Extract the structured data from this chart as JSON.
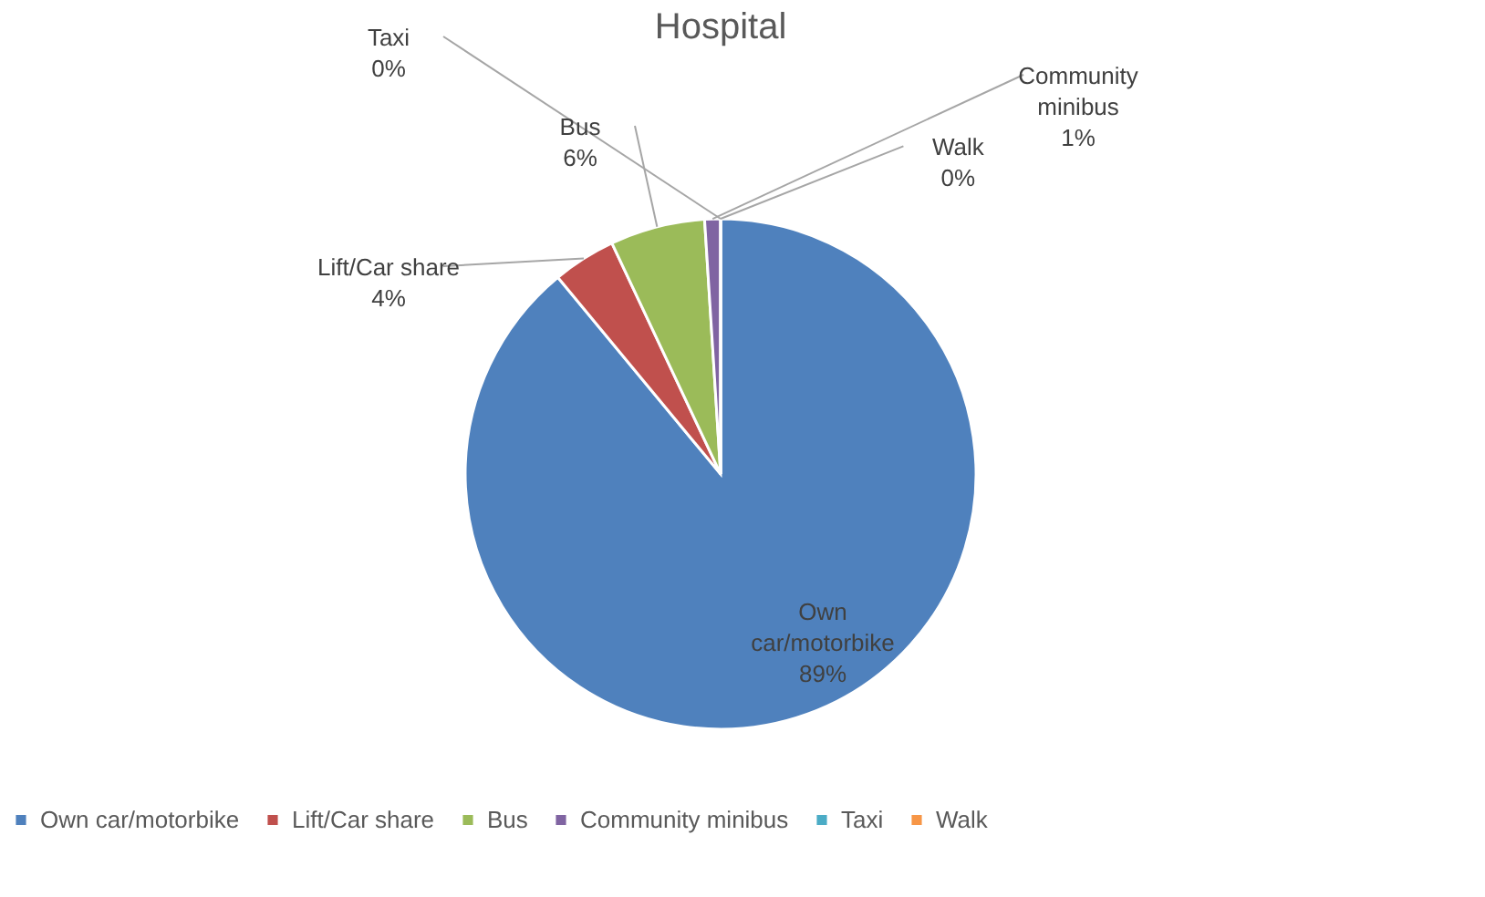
{
  "chart_data": {
    "type": "pie",
    "title": "Hospital",
    "categories": [
      "Own car/motorbike",
      "Lift/Car share",
      "Bus",
      "Community minibus",
      "Taxi",
      "Walk"
    ],
    "values": [
      89,
      4,
      6,
      1,
      0,
      0
    ],
    "colors": [
      "#4f81bd",
      "#c0504d",
      "#9bbb59",
      "#8064a2",
      "#4bacc6",
      "#f79646"
    ],
    "value_labels": [
      "89%",
      "4%",
      "6%",
      "1%",
      "0%",
      "0%"
    ],
    "legend": "bottom"
  }
}
